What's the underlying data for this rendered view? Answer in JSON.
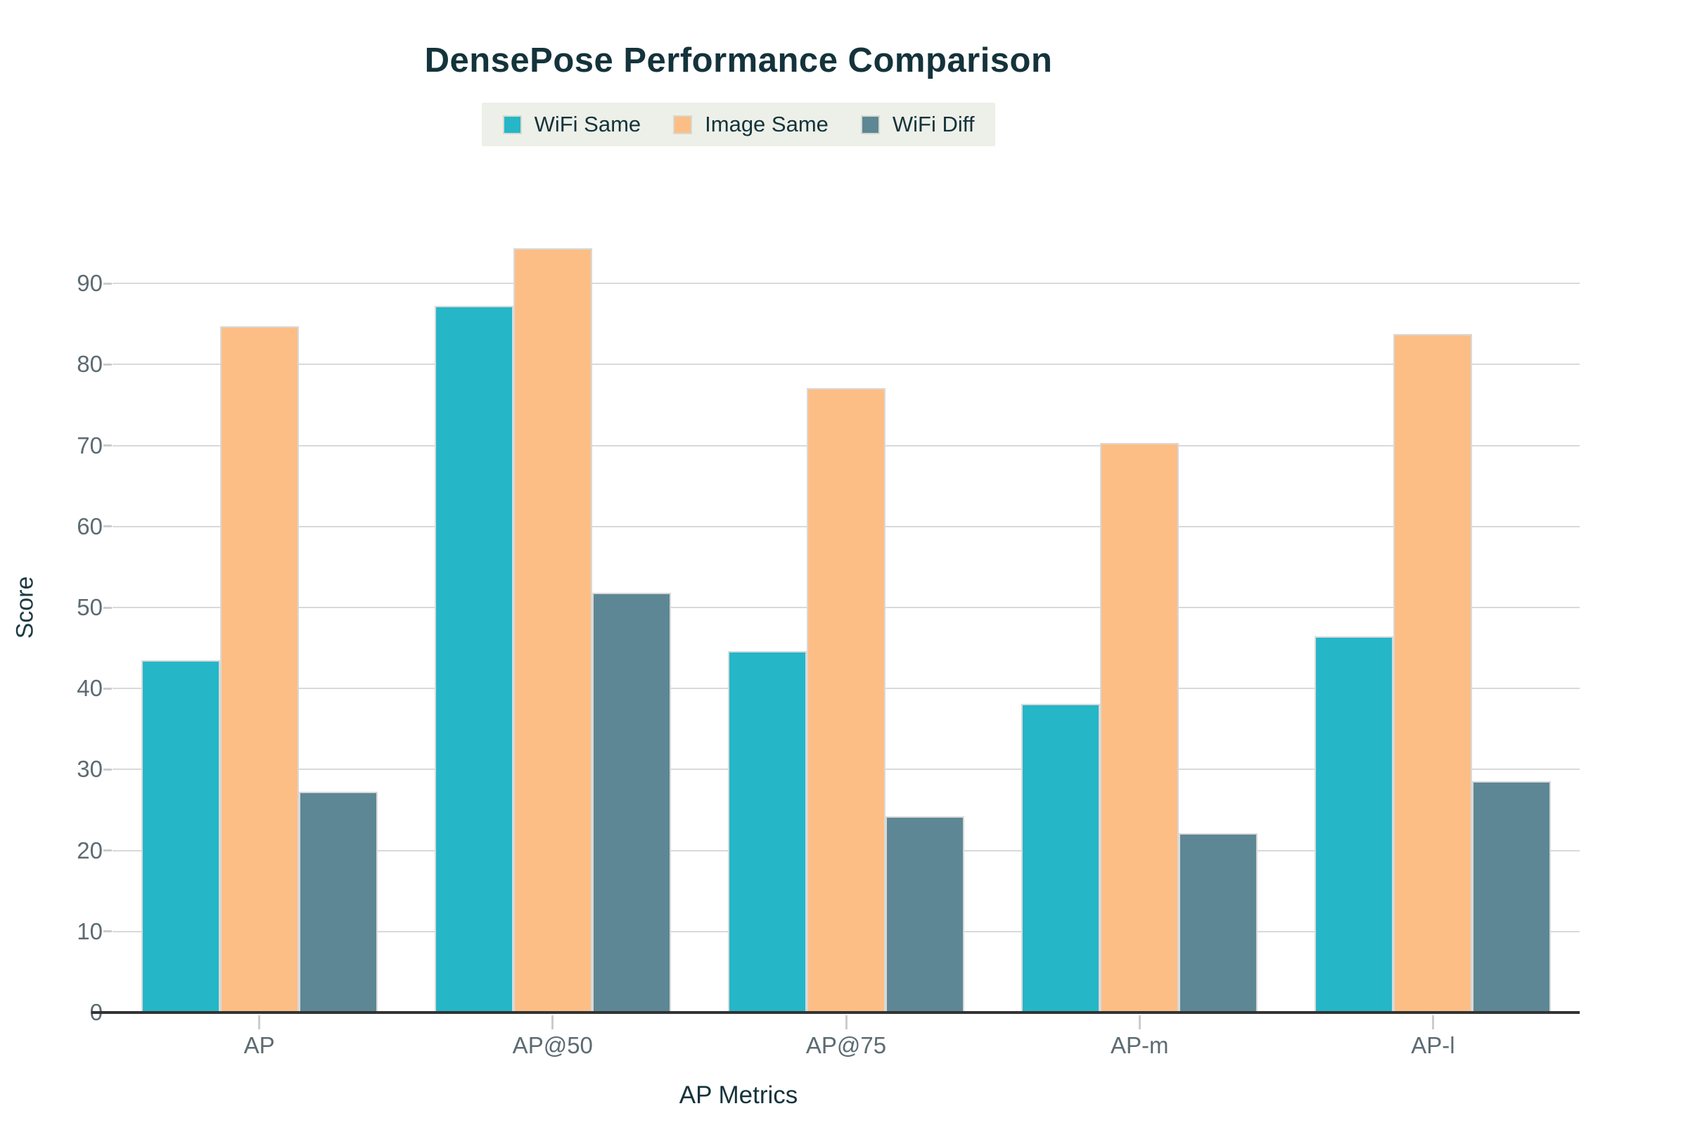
{
  "title": "DensePose Performance Comparison",
  "chart_data": {
    "type": "bar",
    "title": "DensePose Performance Comparison",
    "categories": [
      "AP",
      "AP@50",
      "AP@75",
      "AP-m",
      "AP-l"
    ],
    "series": [
      {
        "name": "WiFi Same",
        "color": "#25b6c8",
        "values": [
          43.5,
          87.2,
          44.6,
          38.1,
          46.4
        ]
      },
      {
        "name": "Image Same",
        "color": "#fdbe85",
        "values": [
          84.7,
          94.4,
          77.1,
          70.3,
          83.8
        ]
      },
      {
        "name": "WiFi Diff",
        "color": "#5d8794",
        "values": [
          27.3,
          51.8,
          24.2,
          22.1,
          28.6
        ]
      }
    ],
    "xlabel": "AP Metrics",
    "ylabel": "Score",
    "ylim": [
      0,
      100
    ],
    "yticks": [
      0,
      10,
      20,
      30,
      40,
      50,
      60,
      70,
      80,
      90
    ],
    "grid": true,
    "legend_position": "top-center"
  },
  "colors": {
    "grid": "#d9d9d9",
    "axis_line": "#333333",
    "tick_text": "#5c6b73",
    "heading_text": "#14333b",
    "legend_bg": "#edf0e8",
    "tick_mark": "#cccccc"
  }
}
